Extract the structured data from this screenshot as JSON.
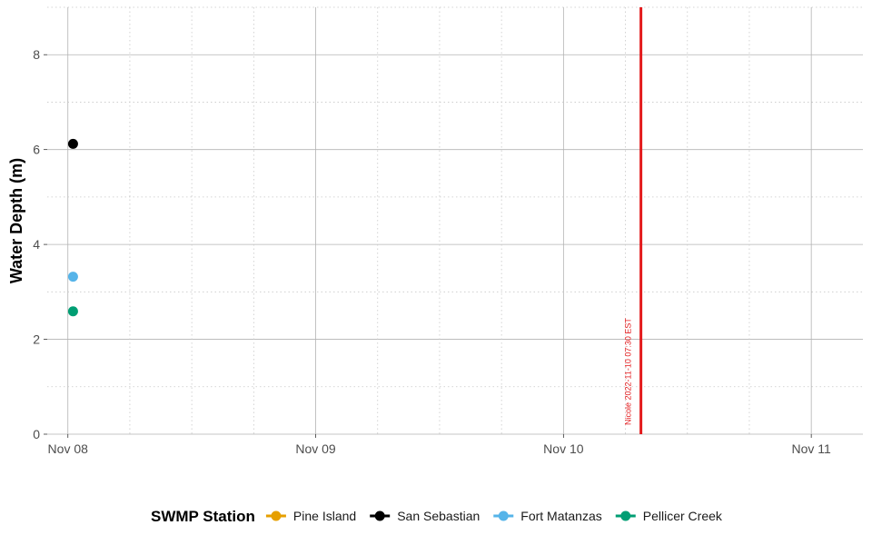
{
  "chart_data": {
    "type": "scatter",
    "ylabel": "Water Depth (m)",
    "xlabel": "",
    "ylim": [
      0,
      9
    ],
    "yticks": [
      0,
      2,
      4,
      6,
      8
    ],
    "xlim": [
      "2022-11-07 22:00",
      "2022-11-11 05:00"
    ],
    "xticks": [
      {
        "value": "2022-11-08 00:00",
        "label": "Nov 08"
      },
      {
        "value": "2022-11-09 00:00",
        "label": "Nov 09"
      },
      {
        "value": "2022-11-10 00:00",
        "label": "Nov 10"
      },
      {
        "value": "2022-11-11 00:00",
        "label": "Nov 11"
      }
    ],
    "grid": true,
    "legend": {
      "title": "SWMP Station",
      "position": "bottom",
      "entries": [
        {
          "name": "Pine Island",
          "color": "#E69F00"
        },
        {
          "name": "San Sebastian",
          "color": "#000000"
        },
        {
          "name": "Fort Matanzas",
          "color": "#56B4E9"
        },
        {
          "name": "Pellicer Creek",
          "color": "#009E73"
        }
      ]
    },
    "series": [
      {
        "name": "San Sebastian",
        "color": "#000000",
        "points": [
          {
            "x": "2022-11-08 00:30",
            "y": 6.12
          }
        ]
      },
      {
        "name": "Fort Matanzas",
        "color": "#56B4E9",
        "points": [
          {
            "x": "2022-11-08 00:30",
            "y": 3.32
          }
        ]
      },
      {
        "name": "Pellicer Creek",
        "color": "#009E73",
        "points": [
          {
            "x": "2022-11-08 00:30",
            "y": 2.59
          }
        ]
      },
      {
        "name": "Pine Island",
        "color": "#E69F00",
        "points": []
      }
    ],
    "annotations": [
      {
        "type": "vline",
        "x": "2022-11-10 07:30",
        "color": "#e31a1c",
        "label": "Nicole 2022-11-10 07:30 EST"
      }
    ]
  }
}
